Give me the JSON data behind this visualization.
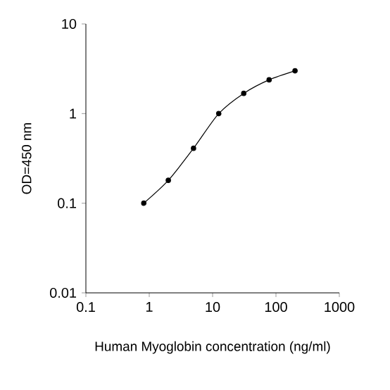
{
  "chart_data": {
    "type": "line",
    "xlabel": "Human Myoglobin concentration (ng/ml)",
    "ylabel": "OD=450 nm",
    "x": [
      0.82,
      2.0,
      5.0,
      12.5,
      31,
      78,
      200
    ],
    "values": [
      0.1,
      0.18,
      0.41,
      1.0,
      1.68,
      2.38,
      3.0
    ],
    "color": "#000000",
    "marker": "circle",
    "line_style": "solid",
    "log": "xy",
    "grid": false,
    "xlim": [
      0.1,
      1000
    ],
    "ylim": [
      0.01,
      10
    ],
    "xticks": [
      0.1,
      1,
      10,
      100,
      1000
    ],
    "yticks": [
      0.01,
      0.1,
      1,
      10
    ]
  }
}
